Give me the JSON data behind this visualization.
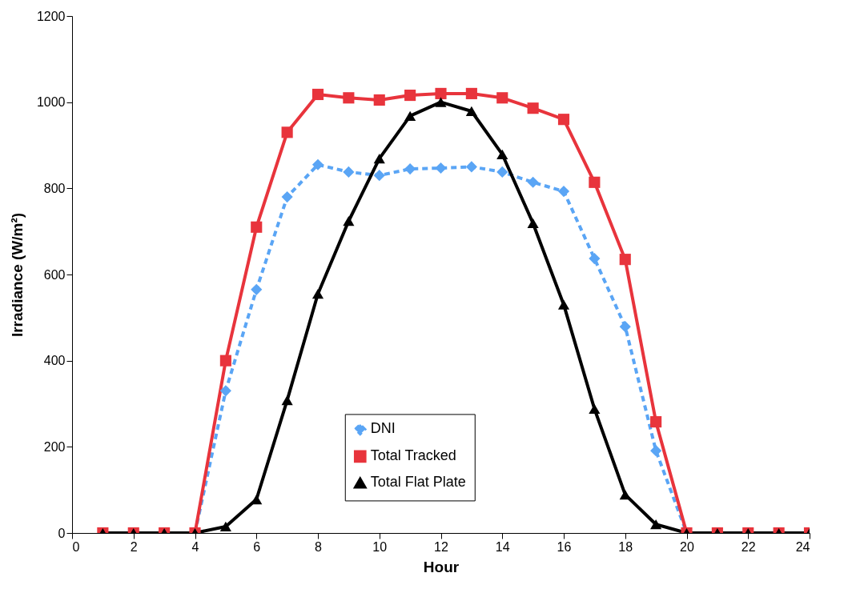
{
  "chart_data": {
    "type": "line",
    "xlabel": "Hour",
    "ylabel": "Irradiance (W/m²)",
    "x": [
      1,
      2,
      3,
      4,
      5,
      6,
      7,
      8,
      9,
      10,
      11,
      12,
      13,
      14,
      15,
      16,
      17,
      18,
      19,
      20,
      21,
      22,
      23,
      24
    ],
    "xlim": [
      0,
      24
    ],
    "xticks": [
      0,
      2,
      4,
      6,
      8,
      10,
      12,
      14,
      16,
      18,
      20,
      22,
      24
    ],
    "ylim": [
      0,
      1200
    ],
    "yticks": [
      0,
      200,
      400,
      600,
      800,
      1000,
      1200
    ],
    "grid": false,
    "legend": "bottom",
    "series": [
      {
        "name": "DNI",
        "color": "#5aa5f5",
        "marker": "diamond",
        "line_style": "dashed",
        "values": [
          null,
          null,
          null,
          0,
          330,
          565,
          780,
          855,
          838,
          830,
          845,
          847,
          850,
          838,
          814,
          793,
          637,
          479,
          191,
          0,
          null,
          null,
          null,
          null
        ]
      },
      {
        "name": "Total Tracked",
        "color": "#e8343c",
        "marker": "square",
        "line_style": "solid",
        "values": [
          0,
          0,
          0,
          0,
          400,
          710,
          930,
          1018,
          1010,
          1005,
          1016,
          1020,
          1020,
          1010,
          986,
          960,
          814,
          635,
          258,
          0,
          0,
          0,
          0,
          0
        ]
      },
      {
        "name": "Total Flat Plate",
        "color": "#000000",
        "marker": "triangle",
        "line_style": "solid",
        "values": [
          0,
          0,
          0,
          0,
          15,
          78,
          308,
          555,
          724,
          869,
          968,
          1000,
          979,
          879,
          719,
          530,
          288,
          89,
          20,
          0,
          0,
          0,
          0,
          0
        ]
      }
    ]
  }
}
